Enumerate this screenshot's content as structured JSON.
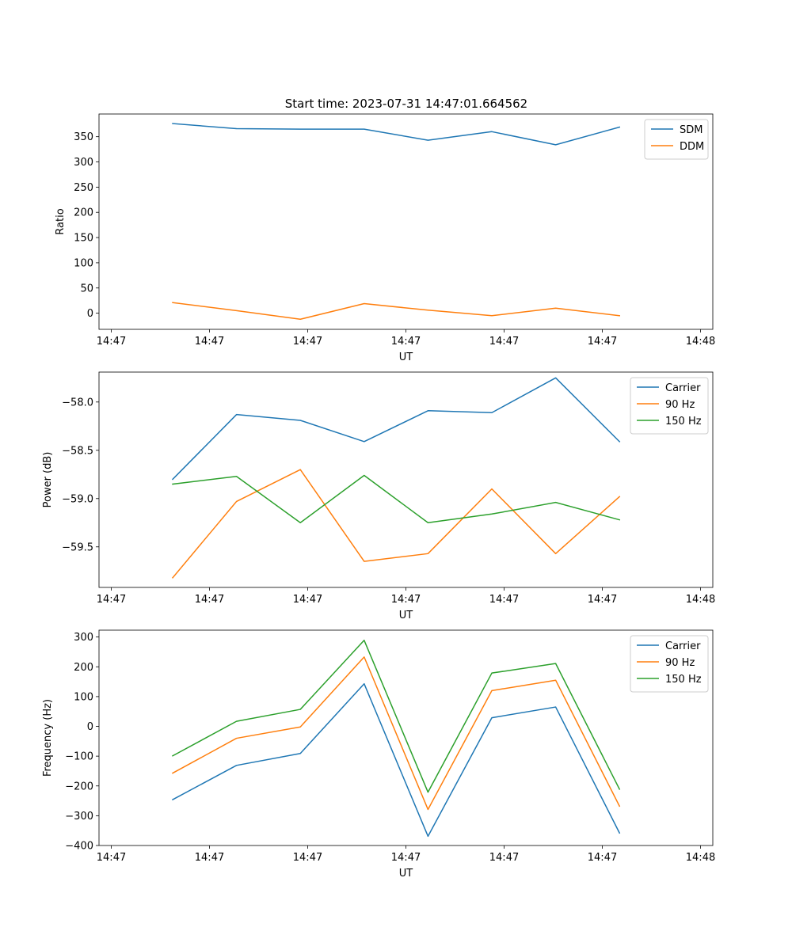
{
  "figure": {
    "title": "Start time: 2023-07-31 14:47:01.664562"
  },
  "colors": {
    "blue": "#1f77b4",
    "orange": "#ff7f0e",
    "green": "#2ca02c",
    "axis": "#000000",
    "legend_border": "#cccccc"
  },
  "chart_data": [
    {
      "type": "line",
      "id": "ratio",
      "title": "Start time: 2023-07-31 14:47:01.664562",
      "xlabel": "UT",
      "ylabel": "Ratio",
      "x": [
        0.75,
        1.4,
        2.05,
        2.7,
        3.35,
        4.0,
        4.65,
        5.3
      ],
      "xlim": [
        0,
        6.25
      ],
      "x_ticks": [
        0.125,
        1.125,
        2.125,
        3.125,
        4.125,
        5.125,
        6.125
      ],
      "x_tick_labels": [
        "14:47",
        "14:47",
        "14:47",
        "14:47",
        "14:47",
        "14:47",
        "14:48"
      ],
      "ylim": [
        -32,
        395
      ],
      "y_ticks": [
        0,
        50,
        100,
        150,
        200,
        250,
        300,
        350
      ],
      "y_tick_labels": [
        "0",
        "50",
        "100",
        "150",
        "200",
        "250",
        "300",
        "350"
      ],
      "legend_position": "top-right",
      "series": [
        {
          "name": "SDM",
          "color": "#1f77b4",
          "values": [
            376,
            366,
            365,
            365,
            343,
            360,
            334,
            369
          ]
        },
        {
          "name": "DDM",
          "color": "#ff7f0e",
          "values": [
            21,
            5,
            -12,
            19,
            6,
            -5,
            10,
            -5
          ]
        }
      ]
    },
    {
      "type": "line",
      "id": "power",
      "title": "",
      "xlabel": "UT",
      "ylabel": "Power (dB)",
      "x": [
        0.75,
        1.4,
        2.05,
        2.7,
        3.35,
        4.0,
        4.65,
        5.3
      ],
      "xlim": [
        0,
        6.25
      ],
      "x_ticks": [
        0.125,
        1.125,
        2.125,
        3.125,
        4.125,
        5.125,
        6.125
      ],
      "x_tick_labels": [
        "14:47",
        "14:47",
        "14:47",
        "14:47",
        "14:47",
        "14:47",
        "14:48"
      ],
      "ylim": [
        -59.92,
        -57.69
      ],
      "y_ticks": [
        -59.5,
        -59.0,
        -58.5,
        -58.0
      ],
      "y_tick_labels": [
        "−59.5",
        "−59.0",
        "−58.5",
        "−58.0"
      ],
      "legend_position": "top-right",
      "series": [
        {
          "name": "Carrier",
          "color": "#1f77b4",
          "values": [
            -58.8,
            -58.13,
            -58.19,
            -58.41,
            -58.09,
            -58.11,
            -57.75,
            -58.41
          ]
        },
        {
          "name": "90 Hz",
          "color": "#ff7f0e",
          "values": [
            -59.82,
            -59.03,
            -58.7,
            -59.65,
            -59.57,
            -58.9,
            -59.57,
            -58.98
          ]
        },
        {
          "name": "150 Hz",
          "color": "#2ca02c",
          "values": [
            -58.85,
            -58.77,
            -59.25,
            -58.76,
            -59.25,
            -59.16,
            -59.04,
            -59.22
          ]
        }
      ]
    },
    {
      "type": "line",
      "id": "frequency",
      "title": "",
      "xlabel": "UT",
      "ylabel": "Frequency (Hz)",
      "x": [
        0.75,
        1.4,
        2.05,
        2.7,
        3.35,
        4.0,
        4.65,
        5.3
      ],
      "xlim": [
        0,
        6.25
      ],
      "x_ticks": [
        0.125,
        1.125,
        2.125,
        3.125,
        4.125,
        5.125,
        6.125
      ],
      "x_tick_labels": [
        "14:47",
        "14:47",
        "14:47",
        "14:47",
        "14:47",
        "14:47",
        "14:48"
      ],
      "ylim": [
        -400,
        323
      ],
      "y_ticks": [
        -400,
        -300,
        -200,
        -100,
        0,
        100,
        200,
        300
      ],
      "y_tick_labels": [
        "−400",
        "−300",
        "−200",
        "−100",
        "0",
        "100",
        "200",
        "300"
      ],
      "legend_position": "top-right",
      "series": [
        {
          "name": "Carrier",
          "color": "#1f77b4",
          "values": [
            -246,
            -131,
            -91,
            143,
            -369,
            29,
            65,
            -358
          ]
        },
        {
          "name": "90 Hz",
          "color": "#ff7f0e",
          "values": [
            -157,
            -40,
            -2,
            233,
            -279,
            120,
            155,
            -268
          ]
        },
        {
          "name": "150 Hz",
          "color": "#2ca02c",
          "values": [
            -99,
            17,
            57,
            289,
            -221,
            179,
            211,
            -211
          ]
        }
      ]
    }
  ]
}
